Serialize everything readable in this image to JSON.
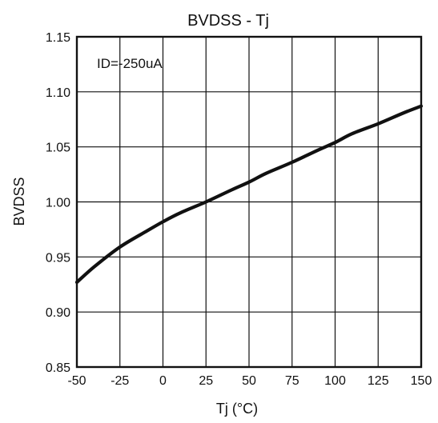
{
  "chart_data": {
    "type": "line",
    "title": "BVDSS  -  Tj",
    "xlabel": "Tj (°C)",
    "ylabel": "BVDSS",
    "xlim": [
      -50,
      150
    ],
    "ylim": [
      0.85,
      1.15
    ],
    "xticks": [
      -50,
      -25,
      0,
      25,
      50,
      75,
      100,
      125,
      150
    ],
    "yticks": [
      "0.85",
      "0.90",
      "0.95",
      "1.00",
      "1.05",
      "1.10",
      "1.15"
    ],
    "annotation": "ID=-250uA",
    "grid": true,
    "series": [
      {
        "x": [
          -50,
          -40,
          -25,
          -10,
          0,
          10,
          25,
          40,
          50,
          60,
          75,
          90,
          100,
          110,
          125,
          140,
          150
        ],
        "y": [
          0.927,
          0.941,
          0.959,
          0.973,
          0.982,
          0.99,
          1.0,
          1.011,
          1.018,
          1.026,
          1.036,
          1.047,
          1.054,
          1.062,
          1.071,
          1.081,
          1.087
        ]
      }
    ]
  }
}
